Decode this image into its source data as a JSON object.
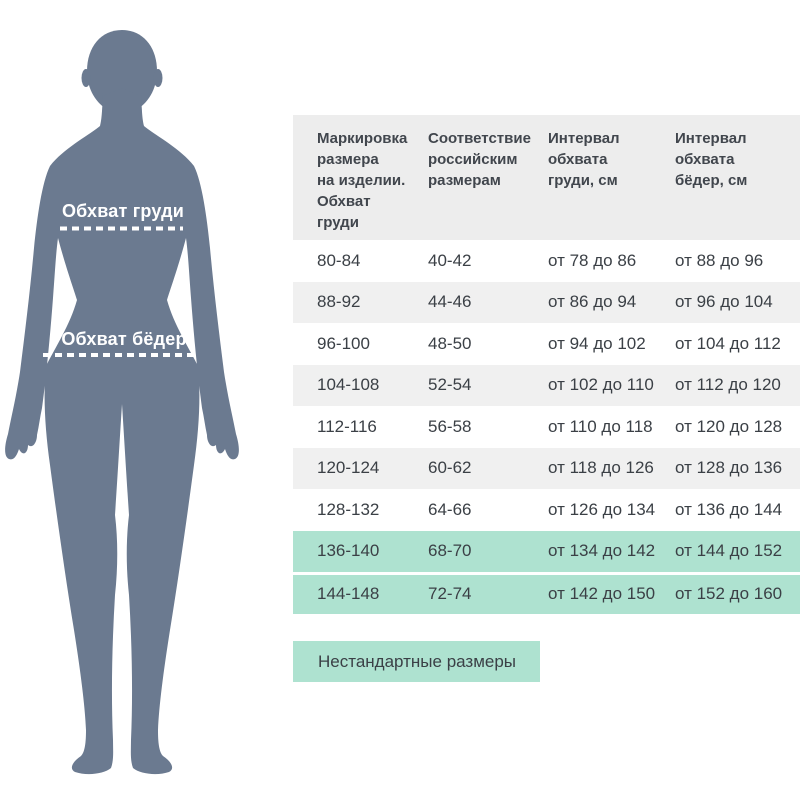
{
  "figure": {
    "chest_label": "Обхват груди",
    "hips_label": "Обхват бёдер",
    "silhouette_color": "#6b7a90",
    "measure_line_color": "#ffffff"
  },
  "table": {
    "headers": [
      "Маркировка\nразмера\nна изделии.\nОбхват\nгруди",
      "Соответствие\nроссийским\nразмерам",
      "Интервал\nобхвата\nгруди, см",
      "Интервал\nобхвата\nбёдер, см"
    ],
    "rows": [
      {
        "cells": [
          "80-84",
          "40-42",
          "от 78 до 86",
          "от 88 до 96"
        ],
        "highlight": false
      },
      {
        "cells": [
          "88-92",
          "44-46",
          "от 86 до 94",
          "от 96 до 104"
        ],
        "highlight": false
      },
      {
        "cells": [
          "96-100",
          "48-50",
          "от 94 до 102",
          "от 104 до 112"
        ],
        "highlight": false
      },
      {
        "cells": [
          "104-108",
          "52-54",
          "от 102 до 110",
          "от 112 до 120"
        ],
        "highlight": false
      },
      {
        "cells": [
          "112-116",
          "56-58",
          "от 110 до 118",
          "от 120 до 128"
        ],
        "highlight": false
      },
      {
        "cells": [
          "120-124",
          "60-62",
          "от 118 до 126",
          "от 128 до 136"
        ],
        "highlight": false
      },
      {
        "cells": [
          "128-132",
          "64-66",
          "от 126 до 134",
          "от 136 до 144"
        ],
        "highlight": false
      },
      {
        "cells": [
          "136-140",
          "68-70",
          "от 134 до 142",
          "от 144 до 152"
        ],
        "highlight": true
      },
      {
        "cells": [
          "144-148",
          "72-74",
          "от 142 до 150",
          "от 152 до 160"
        ],
        "highlight": true
      }
    ],
    "highlight_color": "#aee2d0",
    "stripe_color": "#f0f0f0",
    "header_bg_color": "#ededed",
    "text_color": "#3b4046"
  },
  "legend": {
    "label": "Нестандартные размеры",
    "swatch_color": "#aee2d0"
  }
}
